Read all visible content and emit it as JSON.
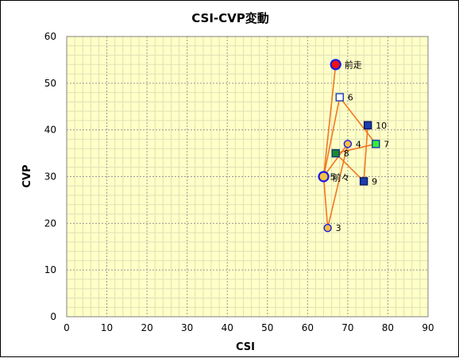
{
  "chart_data": {
    "type": "scatter",
    "title": "CSI-CVP変動",
    "xlabel": "CSI",
    "ylabel": "CVP",
    "xlim": [
      0,
      90
    ],
    "ylim": [
      0,
      60
    ],
    "x_ticks": [
      "0",
      "10",
      "20",
      "30",
      "40",
      "50",
      "60",
      "70",
      "80",
      "90"
    ],
    "y_ticks": [
      "0",
      "10",
      "20",
      "30",
      "40",
      "50",
      "60"
    ],
    "grid": true,
    "colors": {
      "plot_bg": "#FFFFC8",
      "grid_major": "#999999",
      "grid_minor": "#E0E0B4",
      "line": "#F07820",
      "label": "#000000"
    },
    "points": [
      {
        "label": "前走",
        "x": 67,
        "y": 54,
        "marker": "circle-large",
        "fill": "#EE1111",
        "stroke": "#1A1AE6"
      },
      {
        "label": "6",
        "x": 68,
        "y": 47,
        "marker": "square",
        "fill": "#FFFFFF",
        "stroke": "#1A3FB0"
      },
      {
        "label": "10",
        "x": 75,
        "y": 41,
        "marker": "square",
        "fill": "#1A3FB0",
        "stroke": "#0A1A60"
      },
      {
        "label": "4",
        "x": 70,
        "y": 37,
        "marker": "circle",
        "fill": "#F4C040",
        "stroke": "#1A1AE6"
      },
      {
        "label": "7",
        "x": 77,
        "y": 37,
        "marker": "square",
        "fill": "#33EE33",
        "stroke": "#1A3FB0"
      },
      {
        "label": "8",
        "x": 67,
        "y": 35,
        "marker": "square",
        "fill": "#1A8A2A",
        "stroke": "#0A3A80"
      },
      {
        "label": "5",
        "x": 64,
        "y": 30,
        "marker": "circle-small",
        "fill": "#F4C040",
        "stroke": "#1A1AE6"
      },
      {
        "label": "前々",
        "x": 64,
        "y": 30,
        "marker": "circle-large",
        "fill": "#F4C040",
        "stroke": "#1A1AE6"
      },
      {
        "label": "9",
        "x": 74,
        "y": 29,
        "marker": "square",
        "fill": "#1A3FB0",
        "stroke": "#0A1A60"
      },
      {
        "label": "3",
        "x": 65,
        "y": 19,
        "marker": "circle",
        "fill": "#F4C040",
        "stroke": "#1A1AE6"
      }
    ],
    "path_order": [
      "前走",
      "前々",
      "3",
      "4",
      "5",
      "6",
      "7",
      "8",
      "9",
      "10"
    ]
  }
}
